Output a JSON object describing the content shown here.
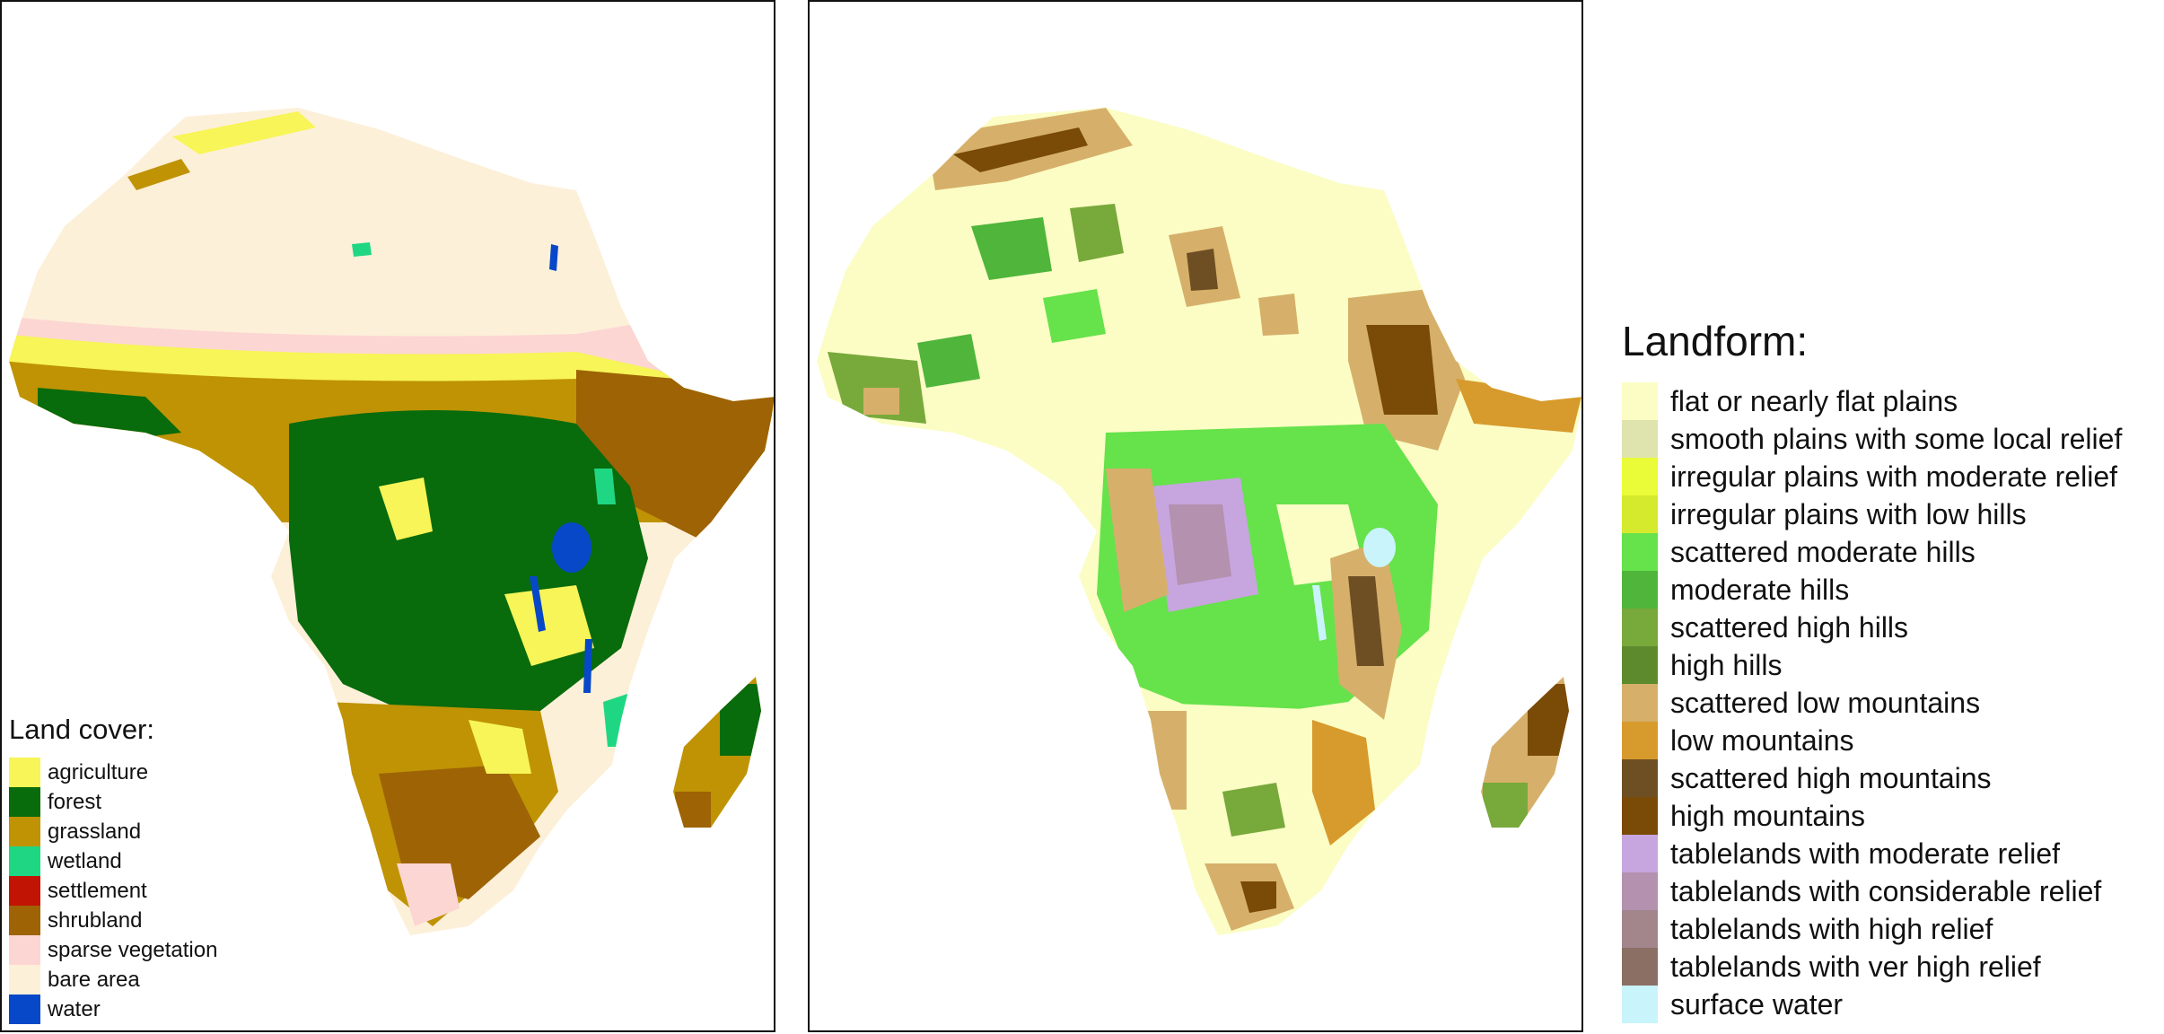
{
  "land_cover": {
    "title": "Land cover:",
    "items": [
      {
        "label": "agriculture",
        "color": "#f7f557"
      },
      {
        "label": "forest",
        "color": "#086b0c"
      },
      {
        "label": "grassland",
        "color": "#bf9304"
      },
      {
        "label": "wetland",
        "color": "#1fd783"
      },
      {
        "label": "settlement",
        "color": "#c21405"
      },
      {
        "label": "shrubland",
        "color": "#9d6305"
      },
      {
        "label": "sparse vegetation",
        "color": "#fcd6d3"
      },
      {
        "label": "bare area",
        "color": "#fdf0d9"
      },
      {
        "label": "water",
        "color": "#0648c8"
      }
    ]
  },
  "landform": {
    "title": "Landform:",
    "items": [
      {
        "label": "flat or nearly flat plains",
        "color": "#fbfdc4"
      },
      {
        "label": "smooth plains with some local relief",
        "color": "#dfe3ae"
      },
      {
        "label": "irregular plains with moderate relief",
        "color": "#eafb37"
      },
      {
        "label": "irregular plains with low hills",
        "color": "#d5ea2d"
      },
      {
        "label": "scattered moderate hills",
        "color": "#66e24b"
      },
      {
        "label": "moderate hills",
        "color": "#4fb53b"
      },
      {
        "label": "scattered high hills",
        "color": "#78a93b"
      },
      {
        "label": "high hills",
        "color": "#5e8a2e"
      },
      {
        "label": "scattered low mountains",
        "color": "#d6b06a"
      },
      {
        "label": "low mountains",
        "color": "#d79a2c"
      },
      {
        "label": "scattered high mountains",
        "color": "#6e4f24"
      },
      {
        "label": "high mountains",
        "color": "#7a4a07"
      },
      {
        "label": "tablelands with moderate relief",
        "color": "#c7a5df"
      },
      {
        "label": "tablelands with considerable relief",
        "color": "#b391af"
      },
      {
        "label": "tablelands with high relief",
        "color": "#a2868c"
      },
      {
        "label": "tablelands with ver high relief",
        "color": "#8b6f65"
      },
      {
        "label": "surface water",
        "color": "#c9f4fb"
      }
    ]
  }
}
